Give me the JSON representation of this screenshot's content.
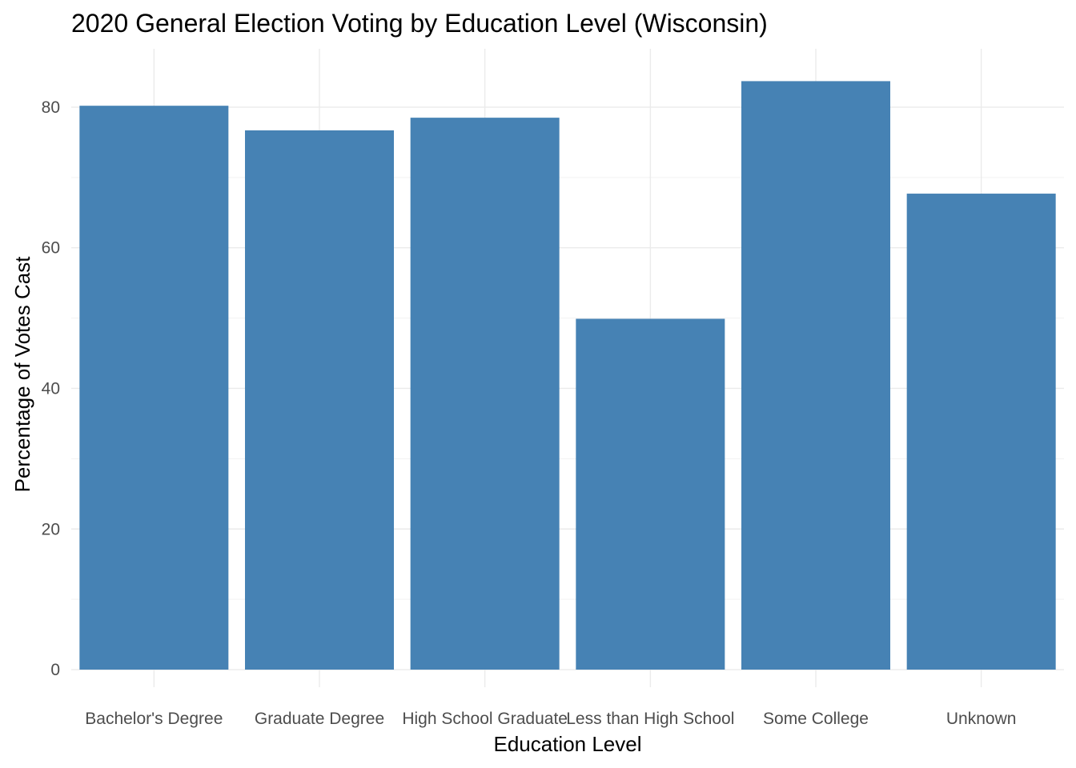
{
  "chart_data": {
    "type": "bar",
    "title": "2020 General Election Voting by Education Level (Wisconsin)",
    "xlabel": "Education Level",
    "ylabel": "Percentage of Votes Cast",
    "categories": [
      "Bachelor's Degree",
      "Graduate Degree",
      "High School Graduate",
      "Less than High School",
      "Some College",
      "Unknown"
    ],
    "values": [
      80.2,
      76.7,
      78.5,
      49.9,
      83.7,
      67.7
    ],
    "ylim": [
      -2.5,
      88.3
    ],
    "y_ticks": [
      0,
      20,
      40,
      60,
      80
    ],
    "y_tick_labels": [
      "0",
      "20",
      "40",
      "60",
      "80"
    ],
    "y_minor_ticks": [
      10,
      30,
      50,
      70
    ],
    "grid": true,
    "legend": "none",
    "bar_color": "#4682b4",
    "background_color": "#ffffff"
  }
}
